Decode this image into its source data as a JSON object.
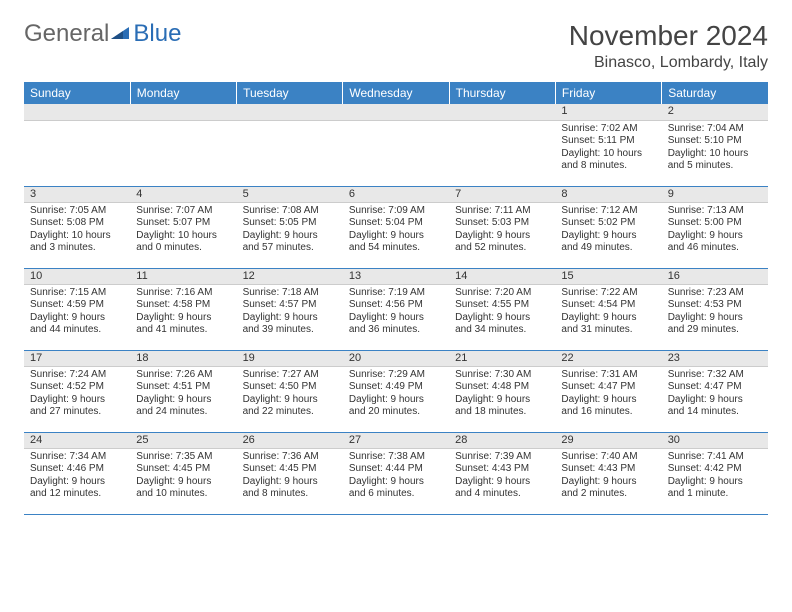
{
  "logo": {
    "word1": "General",
    "word2": "Blue"
  },
  "title": "November 2024",
  "location": "Binasco, Lombardy, Italy",
  "colors": {
    "header_bg": "#3b82c4",
    "header_text": "#ffffff",
    "daynum_bg": "#e8e8e8",
    "grid_line": "#3b82c4",
    "logo_accent": "#2a6db5"
  },
  "weekdays": [
    "Sunday",
    "Monday",
    "Tuesday",
    "Wednesday",
    "Thursday",
    "Friday",
    "Saturday"
  ],
  "weeks": [
    [
      null,
      null,
      null,
      null,
      null,
      {
        "n": "1",
        "sunrise": "Sunrise: 7:02 AM",
        "sunset": "Sunset: 5:11 PM",
        "daylight": "Daylight: 10 hours and 8 minutes."
      },
      {
        "n": "2",
        "sunrise": "Sunrise: 7:04 AM",
        "sunset": "Sunset: 5:10 PM",
        "daylight": "Daylight: 10 hours and 5 minutes."
      }
    ],
    [
      {
        "n": "3",
        "sunrise": "Sunrise: 7:05 AM",
        "sunset": "Sunset: 5:08 PM",
        "daylight": "Daylight: 10 hours and 3 minutes."
      },
      {
        "n": "4",
        "sunrise": "Sunrise: 7:07 AM",
        "sunset": "Sunset: 5:07 PM",
        "daylight": "Daylight: 10 hours and 0 minutes."
      },
      {
        "n": "5",
        "sunrise": "Sunrise: 7:08 AM",
        "sunset": "Sunset: 5:05 PM",
        "daylight": "Daylight: 9 hours and 57 minutes."
      },
      {
        "n": "6",
        "sunrise": "Sunrise: 7:09 AM",
        "sunset": "Sunset: 5:04 PM",
        "daylight": "Daylight: 9 hours and 54 minutes."
      },
      {
        "n": "7",
        "sunrise": "Sunrise: 7:11 AM",
        "sunset": "Sunset: 5:03 PM",
        "daylight": "Daylight: 9 hours and 52 minutes."
      },
      {
        "n": "8",
        "sunrise": "Sunrise: 7:12 AM",
        "sunset": "Sunset: 5:02 PM",
        "daylight": "Daylight: 9 hours and 49 minutes."
      },
      {
        "n": "9",
        "sunrise": "Sunrise: 7:13 AM",
        "sunset": "Sunset: 5:00 PM",
        "daylight": "Daylight: 9 hours and 46 minutes."
      }
    ],
    [
      {
        "n": "10",
        "sunrise": "Sunrise: 7:15 AM",
        "sunset": "Sunset: 4:59 PM",
        "daylight": "Daylight: 9 hours and 44 minutes."
      },
      {
        "n": "11",
        "sunrise": "Sunrise: 7:16 AM",
        "sunset": "Sunset: 4:58 PM",
        "daylight": "Daylight: 9 hours and 41 minutes."
      },
      {
        "n": "12",
        "sunrise": "Sunrise: 7:18 AM",
        "sunset": "Sunset: 4:57 PM",
        "daylight": "Daylight: 9 hours and 39 minutes."
      },
      {
        "n": "13",
        "sunrise": "Sunrise: 7:19 AM",
        "sunset": "Sunset: 4:56 PM",
        "daylight": "Daylight: 9 hours and 36 minutes."
      },
      {
        "n": "14",
        "sunrise": "Sunrise: 7:20 AM",
        "sunset": "Sunset: 4:55 PM",
        "daylight": "Daylight: 9 hours and 34 minutes."
      },
      {
        "n": "15",
        "sunrise": "Sunrise: 7:22 AM",
        "sunset": "Sunset: 4:54 PM",
        "daylight": "Daylight: 9 hours and 31 minutes."
      },
      {
        "n": "16",
        "sunrise": "Sunrise: 7:23 AM",
        "sunset": "Sunset: 4:53 PM",
        "daylight": "Daylight: 9 hours and 29 minutes."
      }
    ],
    [
      {
        "n": "17",
        "sunrise": "Sunrise: 7:24 AM",
        "sunset": "Sunset: 4:52 PM",
        "daylight": "Daylight: 9 hours and 27 minutes."
      },
      {
        "n": "18",
        "sunrise": "Sunrise: 7:26 AM",
        "sunset": "Sunset: 4:51 PM",
        "daylight": "Daylight: 9 hours and 24 minutes."
      },
      {
        "n": "19",
        "sunrise": "Sunrise: 7:27 AM",
        "sunset": "Sunset: 4:50 PM",
        "daylight": "Daylight: 9 hours and 22 minutes."
      },
      {
        "n": "20",
        "sunrise": "Sunrise: 7:29 AM",
        "sunset": "Sunset: 4:49 PM",
        "daylight": "Daylight: 9 hours and 20 minutes."
      },
      {
        "n": "21",
        "sunrise": "Sunrise: 7:30 AM",
        "sunset": "Sunset: 4:48 PM",
        "daylight": "Daylight: 9 hours and 18 minutes."
      },
      {
        "n": "22",
        "sunrise": "Sunrise: 7:31 AM",
        "sunset": "Sunset: 4:47 PM",
        "daylight": "Daylight: 9 hours and 16 minutes."
      },
      {
        "n": "23",
        "sunrise": "Sunrise: 7:32 AM",
        "sunset": "Sunset: 4:47 PM",
        "daylight": "Daylight: 9 hours and 14 minutes."
      }
    ],
    [
      {
        "n": "24",
        "sunrise": "Sunrise: 7:34 AM",
        "sunset": "Sunset: 4:46 PM",
        "daylight": "Daylight: 9 hours and 12 minutes."
      },
      {
        "n": "25",
        "sunrise": "Sunrise: 7:35 AM",
        "sunset": "Sunset: 4:45 PM",
        "daylight": "Daylight: 9 hours and 10 minutes."
      },
      {
        "n": "26",
        "sunrise": "Sunrise: 7:36 AM",
        "sunset": "Sunset: 4:45 PM",
        "daylight": "Daylight: 9 hours and 8 minutes."
      },
      {
        "n": "27",
        "sunrise": "Sunrise: 7:38 AM",
        "sunset": "Sunset: 4:44 PM",
        "daylight": "Daylight: 9 hours and 6 minutes."
      },
      {
        "n": "28",
        "sunrise": "Sunrise: 7:39 AM",
        "sunset": "Sunset: 4:43 PM",
        "daylight": "Daylight: 9 hours and 4 minutes."
      },
      {
        "n": "29",
        "sunrise": "Sunrise: 7:40 AM",
        "sunset": "Sunset: 4:43 PM",
        "daylight": "Daylight: 9 hours and 2 minutes."
      },
      {
        "n": "30",
        "sunrise": "Sunrise: 7:41 AM",
        "sunset": "Sunset: 4:42 PM",
        "daylight": "Daylight: 9 hours and 1 minute."
      }
    ]
  ]
}
